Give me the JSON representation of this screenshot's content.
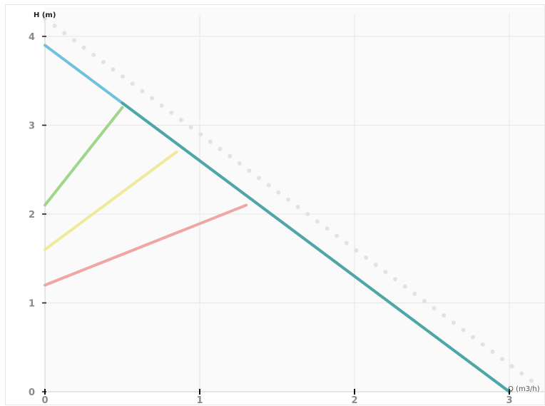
{
  "chart_data": {
    "type": "line",
    "ylabel": "H (m)",
    "xlabel": "Q (m3/h)",
    "xlim": [
      0,
      3.2
    ],
    "ylim": [
      0,
      4.25
    ],
    "x_ticks": [
      0,
      1,
      2,
      3
    ],
    "y_ticks": [
      0,
      1,
      2,
      3,
      4
    ],
    "grid": true,
    "dashed_line": {
      "points": [
        [
          0,
          4.2
        ],
        [
          3.2,
          0.05
        ]
      ],
      "color": "#e2e2e2"
    },
    "series": [
      {
        "points": [
          [
            0,
            3.9
          ],
          [
            3,
            0
          ]
        ],
        "color": "#6fc1de",
        "overlay_color": "#4fa6a6",
        "overlay_from_x": 0.5
      },
      {
        "points": [
          [
            0,
            2.1
          ],
          [
            0.5,
            3.2
          ]
        ],
        "color": "#9fd68a"
      },
      {
        "points": [
          [
            0,
            1.6
          ],
          [
            0.85,
            2.7
          ]
        ],
        "color": "#efea99"
      },
      {
        "points": [
          [
            0,
            1.2
          ],
          [
            1.3,
            2.1
          ]
        ],
        "color": "#eea6a6"
      }
    ]
  }
}
